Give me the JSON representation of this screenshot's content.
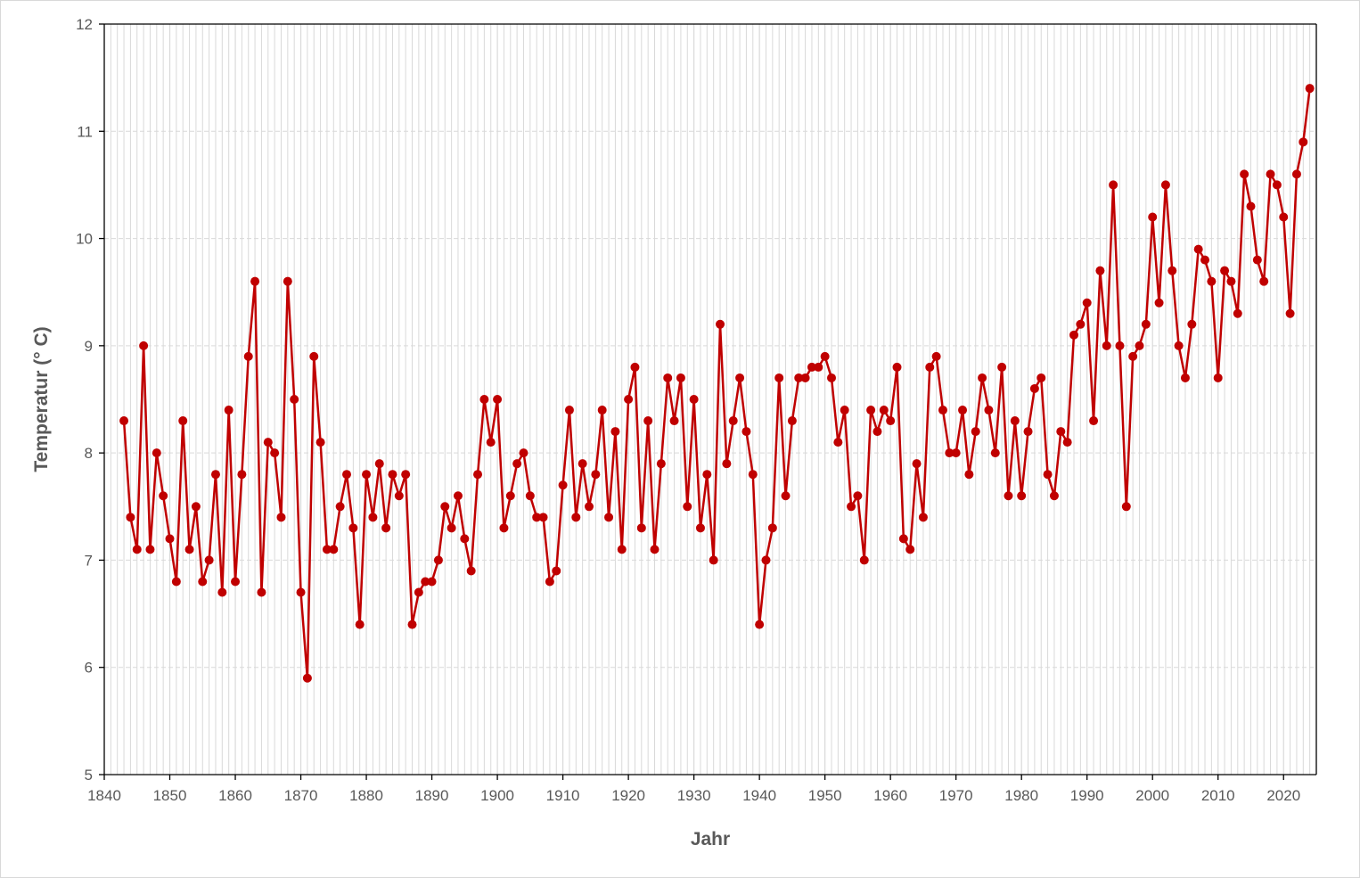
{
  "colors": {
    "series": "#c00000",
    "grid": "#d9d9d9",
    "axis": "#000000",
    "text": "#595959",
    "border": "#d9d9d9"
  },
  "chart_data": {
    "type": "line",
    "title": "",
    "xlabel": "Jahr",
    "ylabel": "Temperatur (° C)",
    "xlim": [
      1840,
      2025
    ],
    "ylim": [
      5,
      12
    ],
    "x_ticks": [
      1840,
      1850,
      1860,
      1870,
      1880,
      1890,
      1900,
      1910,
      1920,
      1930,
      1940,
      1950,
      1960,
      1970,
      1980,
      1990,
      2000,
      2010,
      2020
    ],
    "y_ticks": [
      5,
      6,
      7,
      8,
      9,
      10,
      11,
      12
    ],
    "grid": "vertical every year, horizontal at each y tick",
    "legend": "none",
    "marker": "circle",
    "series": [
      {
        "x": [
          1843,
          1844,
          1845,
          1846,
          1847,
          1848,
          1849,
          1850,
          1851,
          1852,
          1853,
          1854,
          1855,
          1856,
          1857,
          1858,
          1859,
          1860,
          1861,
          1862,
          1863,
          1864,
          1865,
          1866,
          1867,
          1868,
          1869,
          1870,
          1871,
          1872,
          1873,
          1874,
          1875,
          1876,
          1877,
          1878,
          1879,
          1880,
          1881,
          1882,
          1883,
          1884,
          1885,
          1886,
          1887,
          1888,
          1889,
          1890,
          1891,
          1892,
          1893,
          1894,
          1895,
          1896,
          1897,
          1898,
          1899,
          1900,
          1901,
          1902,
          1903,
          1904,
          1905,
          1906,
          1907,
          1908,
          1909,
          1910,
          1911,
          1912,
          1913,
          1914,
          1915,
          1916,
          1917,
          1918,
          1919,
          1920,
          1921,
          1922,
          1923,
          1924,
          1925,
          1926,
          1927,
          1928,
          1929,
          1930,
          1931,
          1932,
          1933,
          1934,
          1935,
          1936,
          1937,
          1938,
          1939,
          1940,
          1941,
          1942,
          1943,
          1944,
          1945,
          1946,
          1947,
          1948,
          1949,
          1950,
          1951,
          1952,
          1953,
          1954,
          1955,
          1956,
          1957,
          1958,
          1959,
          1960,
          1961,
          1962,
          1963,
          1964,
          1965,
          1966,
          1967,
          1968,
          1969,
          1970,
          1971,
          1972,
          1973,
          1974,
          1975,
          1976,
          1977,
          1978,
          1979,
          1980,
          1981,
          1982,
          1983,
          1984,
          1985,
          1986,
          1987,
          1988,
          1989,
          1990,
          1991,
          1992,
          1993,
          1994,
          1995,
          1996,
          1997,
          1998,
          1999,
          2000,
          2001,
          2002,
          2003,
          2004,
          2005,
          2006,
          2007,
          2008,
          2009,
          2010,
          2011,
          2012,
          2013,
          2014,
          2015,
          2016,
          2017,
          2018,
          2019,
          2020,
          2021,
          2022,
          2023,
          2024
        ],
        "y": [
          8.3,
          7.4,
          7.1,
          9.0,
          7.1,
          8.0,
          7.6,
          7.2,
          6.8,
          8.3,
          7.1,
          7.5,
          6.8,
          7.0,
          7.8,
          6.7,
          8.4,
          6.8,
          7.8,
          8.9,
          9.6,
          6.7,
          8.1,
          8.0,
          7.4,
          9.6,
          8.5,
          6.7,
          5.9,
          8.9,
          8.1,
          7.1,
          7.1,
          7.5,
          7.8,
          7.3,
          6.4,
          7.8,
          7.4,
          7.9,
          7.3,
          7.8,
          7.6,
          7.8,
          6.4,
          6.7,
          6.8,
          6.8,
          7.0,
          7.5,
          7.3,
          7.6,
          7.2,
          6.9,
          7.8,
          8.5,
          8.1,
          8.5,
          7.3,
          7.6,
          7.9,
          8.0,
          7.6,
          7.4,
          7.4,
          6.8,
          6.9,
          7.7,
          8.4,
          7.4,
          7.9,
          7.5,
          7.8,
          8.4,
          7.4,
          8.2,
          7.1,
          8.5,
          8.8,
          7.3,
          8.3,
          7.1,
          7.9,
          8.7,
          8.3,
          8.7,
          7.5,
          8.5,
          7.3,
          7.8,
          7.0,
          9.2,
          7.9,
          8.3,
          8.7,
          8.2,
          7.8,
          6.4,
          7.0,
          7.3,
          8.7,
          7.6,
          8.3,
          8.7,
          8.7,
          8.8,
          8.8,
          8.9,
          8.7,
          8.1,
          8.4,
          7.5,
          7.6,
          7.0,
          8.4,
          8.2,
          8.4,
          8.3,
          8.8,
          7.2,
          7.1,
          7.9,
          7.4,
          8.8,
          8.9,
          8.4,
          8.0,
          8.0,
          8.4,
          7.8,
          8.2,
          8.7,
          8.4,
          8.0,
          8.8,
          7.6,
          8.3,
          7.6,
          8.2,
          8.6,
          8.7,
          7.8,
          7.6,
          8.2,
          8.1,
          9.1,
          9.2,
          9.4,
          8.3,
          9.7,
          9.0,
          10.5,
          9.0,
          7.5,
          8.9,
          9.0,
          9.2,
          10.2,
          9.4,
          10.5,
          9.7,
          9.0,
          8.7,
          9.2,
          9.9,
          9.8,
          9.6,
          8.7,
          9.7,
          9.6,
          9.3,
          10.6,
          10.3,
          9.8,
          9.6,
          10.6,
          10.5,
          10.2,
          9.3,
          10.6,
          10.9,
          11.4
        ]
      }
    ]
  }
}
